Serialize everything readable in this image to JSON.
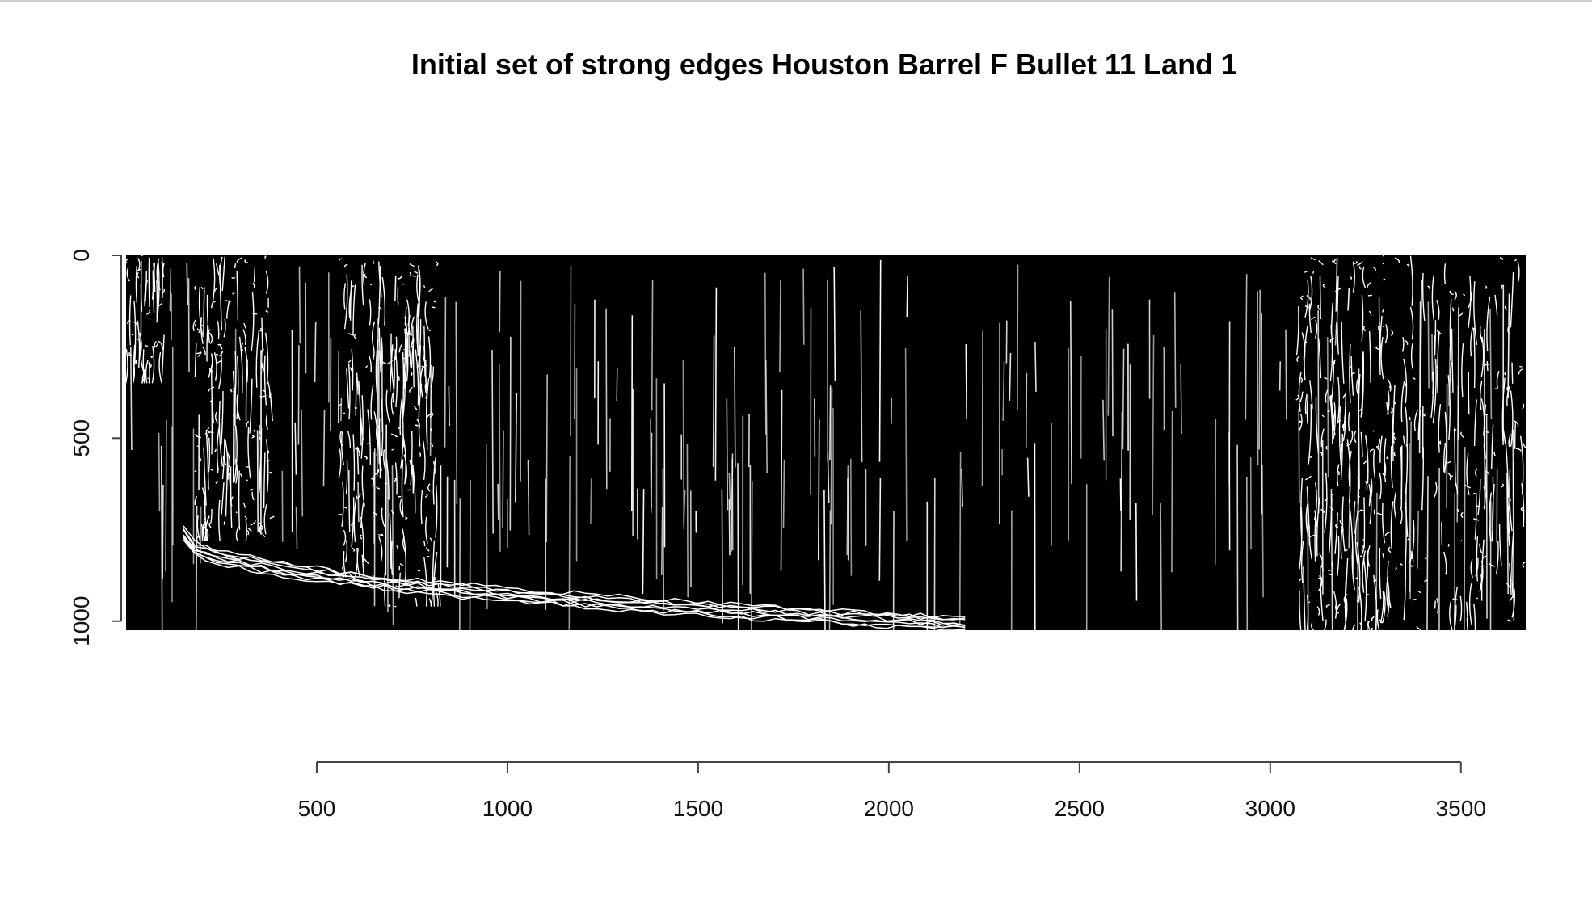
{
  "chart_data": {
    "type": "heatmap",
    "title": "Initial set of strong edges Houston Barrel F Bullet 11 Land 1",
    "xlabel": "",
    "ylabel": "",
    "image_description_colors": {
      "background": "#000000",
      "edge": "#ffffff"
    },
    "xlim": [
      0,
      3670
    ],
    "ylim": [
      1025,
      0
    ],
    "x_ticks": [
      500,
      1000,
      1500,
      2000,
      2500,
      3000,
      3500
    ],
    "x_tick_labels": [
      "500",
      "1000",
      "1500",
      "2000",
      "2500",
      "3000",
      "3500"
    ],
    "y_ticks": [
      0,
      500,
      1000
    ],
    "y_tick_labels": [
      "0",
      "500",
      "1000"
    ],
    "grid": false,
    "edge_regions": [
      {
        "x": [
          0,
          100
        ],
        "y": [
          0,
          350
        ],
        "density": 0.6
      },
      {
        "x": [
          180,
          380
        ],
        "y": [
          0,
          780
        ],
        "density": 0.9
      },
      {
        "x": [
          560,
          660
        ],
        "y": [
          0,
          880
        ],
        "density": 0.8
      },
      {
        "x": [
          660,
          820
        ],
        "y": [
          0,
          960
        ],
        "density": 1.0
      },
      {
        "x": [
          3070,
          3300
        ],
        "y": [
          0,
          1025
        ],
        "density": 1.0
      },
      {
        "x": [
          3300,
          3670
        ],
        "y": [
          0,
          1025
        ],
        "density": 0.6
      }
    ],
    "bottom_edge_band": {
      "x": [
        150,
        2200
      ],
      "y": [
        780,
        1025
      ]
    }
  }
}
